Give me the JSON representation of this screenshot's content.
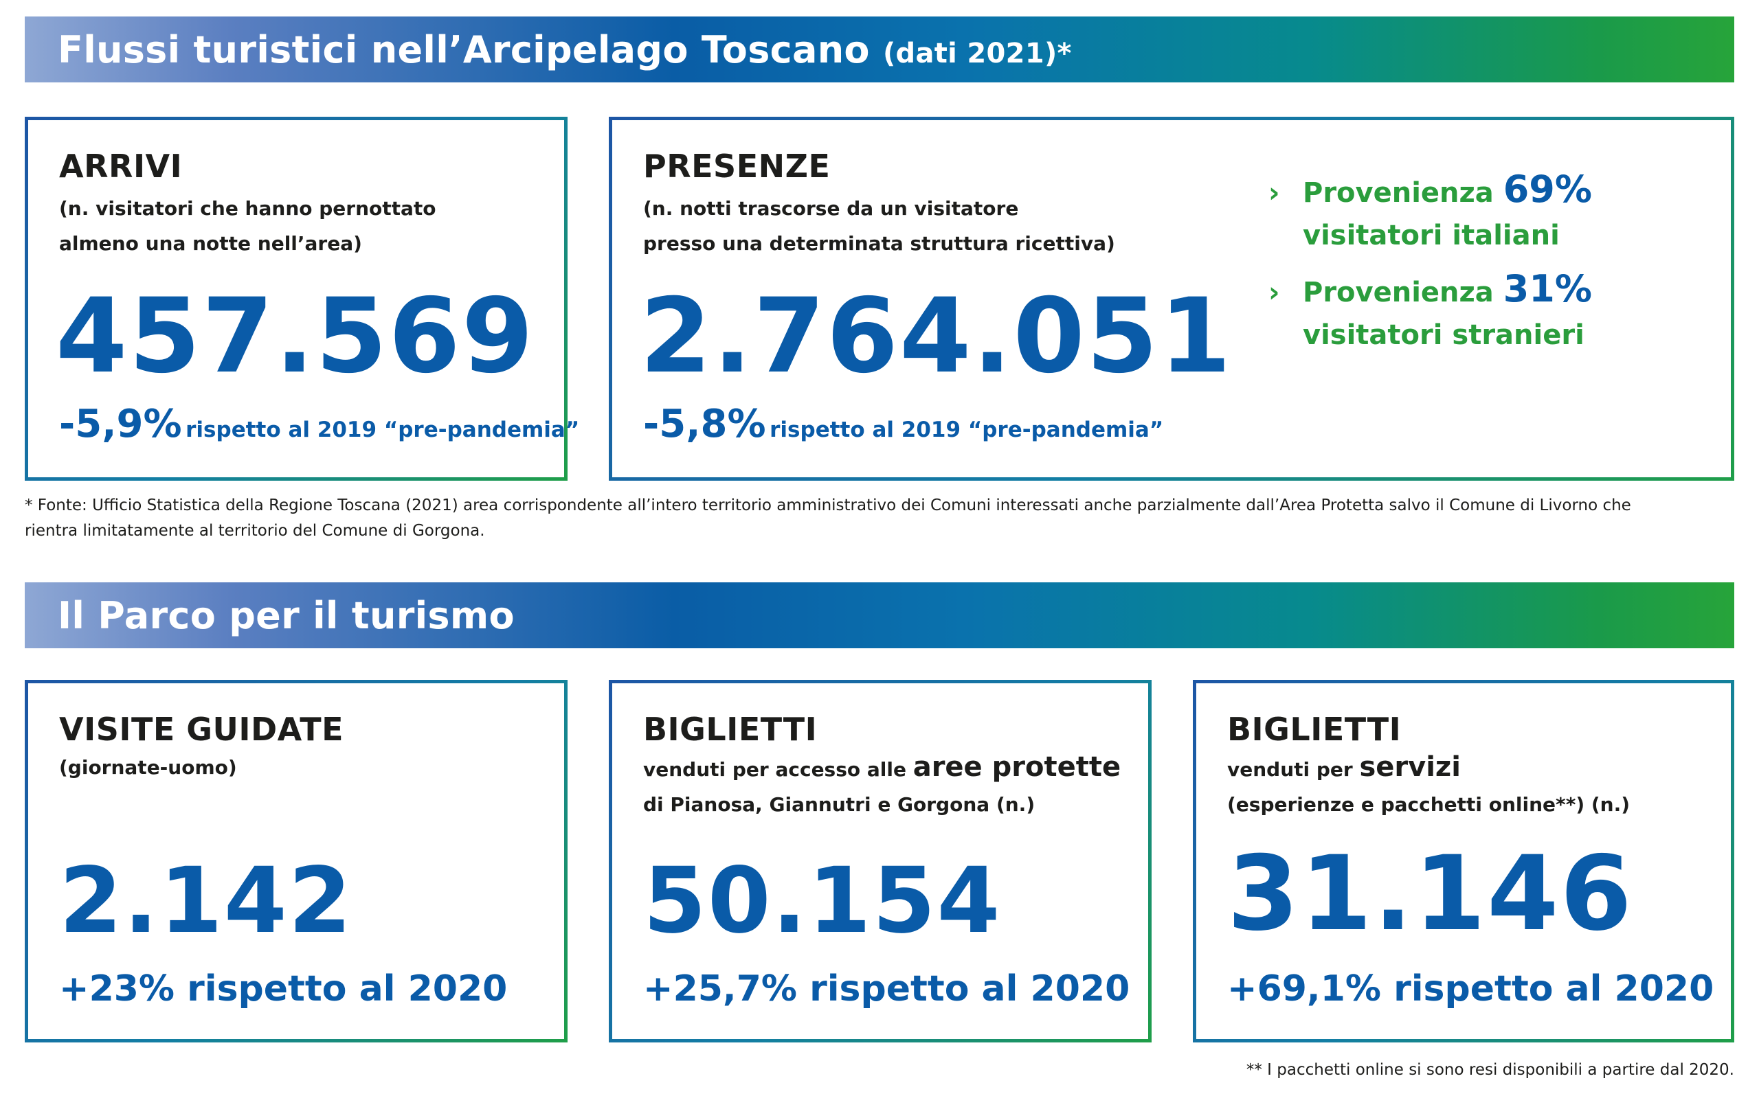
{
  "section1": {
    "title": "Flussi turistici nell’Arcipelago Toscano",
    "subtitle": "(dati 2021)*"
  },
  "arrivi": {
    "title": "ARRIVI",
    "desc_line1": "(n. visitatori che hanno pernottato",
    "desc_line2": "almeno una notte nell’area)",
    "value": "457.569",
    "change_pct": "-5,9%",
    "change_text": "rispetto al 2019 “pre-pandemia”"
  },
  "presenze": {
    "title": "PRESENZE",
    "desc_line1": "(n. notti trascorse da un visitatore",
    "desc_line2": "presso una determinata struttura ricettiva)",
    "value": "2.764.051",
    "change_pct": "-5,8%",
    "change_text": "rispetto al 2019 “pre-pandemia”",
    "provenienza": [
      {
        "label": "Provenienza",
        "pct": "69%",
        "desc": "visitatori italiani"
      },
      {
        "label": "Provenienza",
        "pct": "31%",
        "desc": "visitatori stranieri"
      }
    ]
  },
  "footnote1": {
    "line1": "* Fonte: Ufficio Statistica della Regione Toscana (2021) area corrispondente all’intero territorio amministrativo dei Comuni interessati anche parzialmente dall’Area Protetta salvo il Comune di Livorno che",
    "line2": "rientra limitatamente al territorio del Comune di Gorgona."
  },
  "section2": {
    "title": "Il Parco per il turismo"
  },
  "visite": {
    "title": "VISITE GUIDATE",
    "desc_line1": "(giornate-uomo)",
    "value": "2.142",
    "change": "+23% rispetto al 2020"
  },
  "biglietti_aree": {
    "title": "BIGLIETTI",
    "desc_line1_pre": "venduti per accesso alle",
    "desc_line1_emph": "aree protette",
    "desc_line2": "di Pianosa, Giannutri e Gorgona (n.)",
    "value": "50.154",
    "change": "+25,7% rispetto al 2020"
  },
  "biglietti_servizi": {
    "title": "BIGLIETTI",
    "desc_line1_pre": "venduti per",
    "desc_line1_emph": "servizi",
    "desc_line2": "(esperienze e pacchetti online**) (n.)",
    "value": "31.146",
    "change": "+69,1% rispetto al 2020"
  },
  "footnote2": "** I pacchetti online si sono resi disponibili a partire dal 2020.",
  "colors": {
    "blue": "#0a5ba8",
    "green": "#2a9d3c",
    "dark_text": "#1d1d1b"
  }
}
